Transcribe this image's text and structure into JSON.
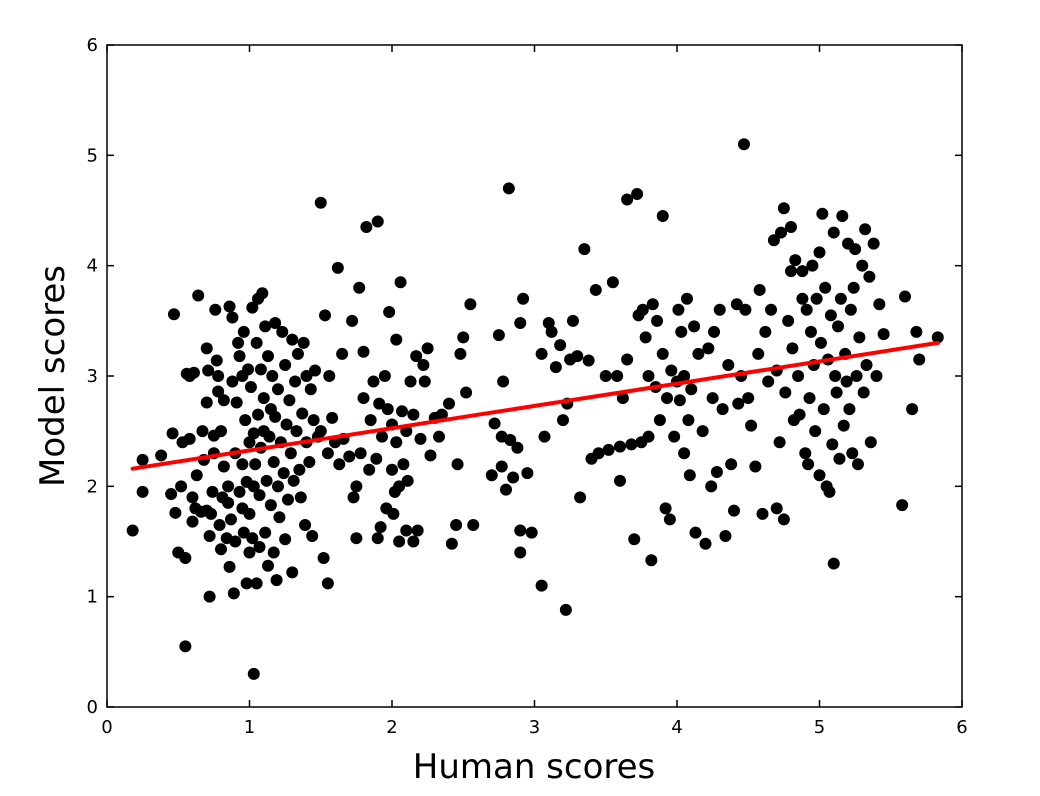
{
  "chart_data": {
    "type": "scatter",
    "title": "",
    "xlabel": "Human scores",
    "ylabel": "Model scores",
    "xlim": [
      0,
      6
    ],
    "ylim": [
      0,
      6
    ],
    "xticks": [
      "0",
      "1",
      "2",
      "3",
      "4",
      "5",
      "6"
    ],
    "yticks": [
      "0",
      "1",
      "2",
      "3",
      "4",
      "5",
      "6"
    ],
    "grid": false,
    "legend": "none",
    "marker_color": "#000000",
    "fit_line_color": "#ff0000",
    "fit_line": {
      "x": [
        0.18,
        5.83
      ],
      "y": [
        2.16,
        3.3
      ]
    },
    "points": [
      [
        0.18,
        1.6
      ],
      [
        0.25,
        1.95
      ],
      [
        0.25,
        2.24
      ],
      [
        0.38,
        2.28
      ],
      [
        0.45,
        1.93
      ],
      [
        0.46,
        2.48
      ],
      [
        0.47,
        3.56
      ],
      [
        0.48,
        1.76
      ],
      [
        0.5,
        1.4
      ],
      [
        0.52,
        2.0
      ],
      [
        0.53,
        2.4
      ],
      [
        0.55,
        1.35
      ],
      [
        0.55,
        0.55
      ],
      [
        0.56,
        3.02
      ],
      [
        0.58,
        2.43
      ],
      [
        0.58,
        3.0
      ],
      [
        0.6,
        1.68
      ],
      [
        0.6,
        1.9
      ],
      [
        0.61,
        3.03
      ],
      [
        0.62,
        1.8
      ],
      [
        0.63,
        2.1
      ],
      [
        0.64,
        3.73
      ],
      [
        0.66,
        1.77
      ],
      [
        0.67,
        2.5
      ],
      [
        0.68,
        2.24
      ],
      [
        0.7,
        1.78
      ],
      [
        0.7,
        2.76
      ],
      [
        0.7,
        3.25
      ],
      [
        0.71,
        3.05
      ],
      [
        0.72,
        1.0
      ],
      [
        0.72,
        1.55
      ],
      [
        0.73,
        1.75
      ],
      [
        0.74,
        1.95
      ],
      [
        0.75,
        2.3
      ],
      [
        0.75,
        2.46
      ],
      [
        0.76,
        3.6
      ],
      [
        0.77,
        3.14
      ],
      [
        0.78,
        2.86
      ],
      [
        0.78,
        3.0
      ],
      [
        0.79,
        1.65
      ],
      [
        0.8,
        1.43
      ],
      [
        0.8,
        2.5
      ],
      [
        0.81,
        1.9
      ],
      [
        0.82,
        2.18
      ],
      [
        0.82,
        2.78
      ],
      [
        0.84,
        1.53
      ],
      [
        0.85,
        1.85
      ],
      [
        0.85,
        2.0
      ],
      [
        0.86,
        3.63
      ],
      [
        0.86,
        1.27
      ],
      [
        0.87,
        1.7
      ],
      [
        0.88,
        2.95
      ],
      [
        0.88,
        3.53
      ],
      [
        0.89,
        1.03
      ],
      [
        0.9,
        1.5
      ],
      [
        0.9,
        2.3
      ],
      [
        0.91,
        2.76
      ],
      [
        0.92,
        3.3
      ],
      [
        0.93,
        1.95
      ],
      [
        0.93,
        3.18
      ],
      [
        0.95,
        1.8
      ],
      [
        0.95,
        2.2
      ],
      [
        0.95,
        3.0
      ],
      [
        0.96,
        1.58
      ],
      [
        0.96,
        3.4
      ],
      [
        0.97,
        2.6
      ],
      [
        0.98,
        1.12
      ],
      [
        0.98,
        2.04
      ],
      [
        0.99,
        3.06
      ],
      [
        1.0,
        1.4
      ],
      [
        1.0,
        1.75
      ],
      [
        1.0,
        2.4
      ],
      [
        1.01,
        2.9
      ],
      [
        1.02,
        1.53
      ],
      [
        1.02,
        3.62
      ],
      [
        1.03,
        2.0
      ],
      [
        1.03,
        2.48
      ],
      [
        1.03,
        0.3
      ],
      [
        1.04,
        2.2
      ],
      [
        1.05,
        3.3
      ],
      [
        1.05,
        1.12
      ],
      [
        1.06,
        3.7
      ],
      [
        1.06,
        2.65
      ],
      [
        1.07,
        1.45
      ],
      [
        1.07,
        1.92
      ],
      [
        1.08,
        2.35
      ],
      [
        1.08,
        3.06
      ],
      [
        1.09,
        3.75
      ],
      [
        1.1,
        2.5
      ],
      [
        1.1,
        2.8
      ],
      [
        1.11,
        1.58
      ],
      [
        1.11,
        3.45
      ],
      [
        1.12,
        2.05
      ],
      [
        1.13,
        1.28
      ],
      [
        1.13,
        3.18
      ],
      [
        1.14,
        2.45
      ],
      [
        1.15,
        2.7
      ],
      [
        1.15,
        1.83
      ],
      [
        1.16,
        3.0
      ],
      [
        1.17,
        1.4
      ],
      [
        1.17,
        2.22
      ],
      [
        1.18,
        2.63
      ],
      [
        1.18,
        3.48
      ],
      [
        1.19,
        1.15
      ],
      [
        1.2,
        2.0
      ],
      [
        1.2,
        2.88
      ],
      [
        1.21,
        1.72
      ],
      [
        1.22,
        2.4
      ],
      [
        1.23,
        3.4
      ],
      [
        1.24,
        2.12
      ],
      [
        1.25,
        1.52
      ],
      [
        1.25,
        3.1
      ],
      [
        1.26,
        2.56
      ],
      [
        1.27,
        1.88
      ],
      [
        1.28,
        2.78
      ],
      [
        1.29,
        2.3
      ],
      [
        1.3,
        1.22
      ],
      [
        1.3,
        3.33
      ],
      [
        1.31,
        2.05
      ],
      [
        1.32,
        2.95
      ],
      [
        1.33,
        2.5
      ],
      [
        1.34,
        3.2
      ],
      [
        1.35,
        2.15
      ],
      [
        1.36,
        1.9
      ],
      [
        1.37,
        2.66
      ],
      [
        1.38,
        3.3
      ],
      [
        1.39,
        1.65
      ],
      [
        1.4,
        2.4
      ],
      [
        1.4,
        3.0
      ],
      [
        1.42,
        2.22
      ],
      [
        1.43,
        2.88
      ],
      [
        1.44,
        1.55
      ],
      [
        1.45,
        2.6
      ],
      [
        1.46,
        3.05
      ],
      [
        1.48,
        2.45
      ],
      [
        1.5,
        4.57
      ],
      [
        1.5,
        2.5
      ],
      [
        1.52,
        1.35
      ],
      [
        1.53,
        3.55
      ],
      [
        1.55,
        1.12
      ],
      [
        1.55,
        2.3
      ],
      [
        1.56,
        3.0
      ],
      [
        1.58,
        2.62
      ],
      [
        1.6,
        2.4
      ],
      [
        1.62,
        3.98
      ],
      [
        1.63,
        2.2
      ],
      [
        1.65,
        3.2
      ],
      [
        1.66,
        2.43
      ],
      [
        1.7,
        2.27
      ],
      [
        1.72,
        3.5
      ],
      [
        1.73,
        1.9
      ],
      [
        1.75,
        2.0
      ],
      [
        1.75,
        1.53
      ],
      [
        1.77,
        3.8
      ],
      [
        1.78,
        2.3
      ],
      [
        1.8,
        3.22
      ],
      [
        1.8,
        2.8
      ],
      [
        1.82,
        4.35
      ],
      [
        1.84,
        2.15
      ],
      [
        1.85,
        2.6
      ],
      [
        1.87,
        2.95
      ],
      [
        1.89,
        2.25
      ],
      [
        1.9,
        1.53
      ],
      [
        1.9,
        4.4
      ],
      [
        1.91,
        2.75
      ],
      [
        1.92,
        1.63
      ],
      [
        1.93,
        2.45
      ],
      [
        1.95,
        3.0
      ],
      [
        1.96,
        1.8
      ],
      [
        1.97,
        2.7
      ],
      [
        1.98,
        3.58
      ],
      [
        2.0,
        2.15
      ],
      [
        2.0,
        2.56
      ],
      [
        2.01,
        1.75
      ],
      [
        2.02,
        1.95
      ],
      [
        2.03,
        2.4
      ],
      [
        2.03,
        3.33
      ],
      [
        2.05,
        1.5
      ],
      [
        2.05,
        2.0
      ],
      [
        2.06,
        3.85
      ],
      [
        2.07,
        2.68
      ],
      [
        2.08,
        2.2
      ],
      [
        2.1,
        1.6
      ],
      [
        2.1,
        2.5
      ],
      [
        2.11,
        2.05
      ],
      [
        2.13,
        2.95
      ],
      [
        2.15,
        2.65
      ],
      [
        2.15,
        1.5
      ],
      [
        2.17,
        3.18
      ],
      [
        2.18,
        1.6
      ],
      [
        2.2,
        2.43
      ],
      [
        2.22,
        3.1
      ],
      [
        2.23,
        2.95
      ],
      [
        2.25,
        3.25
      ],
      [
        2.27,
        2.28
      ],
      [
        2.3,
        2.62
      ],
      [
        2.33,
        2.45
      ],
      [
        2.35,
        2.65
      ],
      [
        2.4,
        2.75
      ],
      [
        2.42,
        1.48
      ],
      [
        2.45,
        1.65
      ],
      [
        2.46,
        2.2
      ],
      [
        2.48,
        3.2
      ],
      [
        2.5,
        3.35
      ],
      [
        2.52,
        2.85
      ],
      [
        2.55,
        3.65
      ],
      [
        2.57,
        1.65
      ],
      [
        2.7,
        2.1
      ],
      [
        2.72,
        2.57
      ],
      [
        2.75,
        3.37
      ],
      [
        2.77,
        2.45
      ],
      [
        2.77,
        2.18
      ],
      [
        2.78,
        2.95
      ],
      [
        2.8,
        1.97
      ],
      [
        2.82,
        4.7
      ],
      [
        2.83,
        2.42
      ],
      [
        2.85,
        2.08
      ],
      [
        2.88,
        2.35
      ],
      [
        2.9,
        1.4
      ],
      [
        2.9,
        1.6
      ],
      [
        2.9,
        3.48
      ],
      [
        2.92,
        3.7
      ],
      [
        2.95,
        2.12
      ],
      [
        2.98,
        1.58
      ],
      [
        3.05,
        3.2
      ],
      [
        3.05,
        1.1
      ],
      [
        3.07,
        2.45
      ],
      [
        3.1,
        3.48
      ],
      [
        3.12,
        3.4
      ],
      [
        3.15,
        3.08
      ],
      [
        3.18,
        3.28
      ],
      [
        3.2,
        2.6
      ],
      [
        3.22,
        0.88
      ],
      [
        3.23,
        2.75
      ],
      [
        3.25,
        3.15
      ],
      [
        3.27,
        3.5
      ],
      [
        3.3,
        3.18
      ],
      [
        3.32,
        1.9
      ],
      [
        3.35,
        4.15
      ],
      [
        3.38,
        3.14
      ],
      [
        3.4,
        2.25
      ],
      [
        3.43,
        3.78
      ],
      [
        3.45,
        2.3
      ],
      [
        3.5,
        3.0
      ],
      [
        3.52,
        2.33
      ],
      [
        3.55,
        3.85
      ],
      [
        3.58,
        3.0
      ],
      [
        3.6,
        2.05
      ],
      [
        3.6,
        2.36
      ],
      [
        3.62,
        2.8
      ],
      [
        3.65,
        3.15
      ],
      [
        3.65,
        4.6
      ],
      [
        3.68,
        2.38
      ],
      [
        3.7,
        1.52
      ],
      [
        3.72,
        4.65
      ],
      [
        3.73,
        3.55
      ],
      [
        3.75,
        2.4
      ],
      [
        3.76,
        3.6
      ],
      [
        3.78,
        3.35
      ],
      [
        3.8,
        2.45
      ],
      [
        3.8,
        3.0
      ],
      [
        3.82,
        1.33
      ],
      [
        3.83,
        3.65
      ],
      [
        3.85,
        2.9
      ],
      [
        3.86,
        3.5
      ],
      [
        3.88,
        2.6
      ],
      [
        3.9,
        4.45
      ],
      [
        3.9,
        3.2
      ],
      [
        3.92,
        1.8
      ],
      [
        3.93,
        2.8
      ],
      [
        3.95,
        1.7
      ],
      [
        3.96,
        3.05
      ],
      [
        3.98,
        2.45
      ],
      [
        4.0,
        2.95
      ],
      [
        4.01,
        3.6
      ],
      [
        4.02,
        2.78
      ],
      [
        4.03,
        3.4
      ],
      [
        4.05,
        2.3
      ],
      [
        4.05,
        3.0
      ],
      [
        4.07,
        3.7
      ],
      [
        4.08,
        2.6
      ],
      [
        4.09,
        2.1
      ],
      [
        4.1,
        2.88
      ],
      [
        4.12,
        3.45
      ],
      [
        4.13,
        1.58
      ],
      [
        4.15,
        3.2
      ],
      [
        4.18,
        2.5
      ],
      [
        4.2,
        1.48
      ],
      [
        4.22,
        3.25
      ],
      [
        4.24,
        2.0
      ],
      [
        4.25,
        2.8
      ],
      [
        4.26,
        3.4
      ],
      [
        4.28,
        2.13
      ],
      [
        4.3,
        3.6
      ],
      [
        4.32,
        2.7
      ],
      [
        4.34,
        1.55
      ],
      [
        4.36,
        3.1
      ],
      [
        4.38,
        2.2
      ],
      [
        4.4,
        1.78
      ],
      [
        4.42,
        3.65
      ],
      [
        4.43,
        2.75
      ],
      [
        4.45,
        3.0
      ],
      [
        4.47,
        5.1
      ],
      [
        4.48,
        3.6
      ],
      [
        4.5,
        2.8
      ],
      [
        4.52,
        2.55
      ],
      [
        4.55,
        2.18
      ],
      [
        4.57,
        3.2
      ],
      [
        4.58,
        3.78
      ],
      [
        4.6,
        1.75
      ],
      [
        4.62,
        3.4
      ],
      [
        4.64,
        2.95
      ],
      [
        4.66,
        3.6
      ],
      [
        4.68,
        4.23
      ],
      [
        4.7,
        3.05
      ],
      [
        4.7,
        1.8
      ],
      [
        4.72,
        2.4
      ],
      [
        4.73,
        4.3
      ],
      [
        4.75,
        4.52
      ],
      [
        4.75,
        1.7
      ],
      [
        4.76,
        2.85
      ],
      [
        4.78,
        3.5
      ],
      [
        4.8,
        3.95
      ],
      [
        4.8,
        4.35
      ],
      [
        4.81,
        3.25
      ],
      [
        4.82,
        2.6
      ],
      [
        4.83,
        4.05
      ],
      [
        4.85,
        3.0
      ],
      [
        4.86,
        2.65
      ],
      [
        4.88,
        3.7
      ],
      [
        4.88,
        3.95
      ],
      [
        4.9,
        2.3
      ],
      [
        4.91,
        3.6
      ],
      [
        4.92,
        2.2
      ],
      [
        4.93,
        2.8
      ],
      [
        4.94,
        3.4
      ],
      [
        4.95,
        4.0
      ],
      [
        4.96,
        3.1
      ],
      [
        4.97,
        2.5
      ],
      [
        4.98,
        3.7
      ],
      [
        5.0,
        2.1
      ],
      [
        5.0,
        4.12
      ],
      [
        5.01,
        3.3
      ],
      [
        5.02,
        4.47
      ],
      [
        5.03,
        2.7
      ],
      [
        5.04,
        3.8
      ],
      [
        5.05,
        2.0
      ],
      [
        5.06,
        3.15
      ],
      [
        5.07,
        1.95
      ],
      [
        5.08,
        3.55
      ],
      [
        5.09,
        2.38
      ],
      [
        5.1,
        1.3
      ],
      [
        5.1,
        4.3
      ],
      [
        5.11,
        3.0
      ],
      [
        5.12,
        2.85
      ],
      [
        5.13,
        3.45
      ],
      [
        5.14,
        2.25
      ],
      [
        5.15,
        3.7
      ],
      [
        5.16,
        4.45
      ],
      [
        5.17,
        2.55
      ],
      [
        5.18,
        3.2
      ],
      [
        5.19,
        2.95
      ],
      [
        5.2,
        4.2
      ],
      [
        5.21,
        2.7
      ],
      [
        5.22,
        3.6
      ],
      [
        5.23,
        2.3
      ],
      [
        5.24,
        3.8
      ],
      [
        5.25,
        4.15
      ],
      [
        5.26,
        3.0
      ],
      [
        5.27,
        2.2
      ],
      [
        5.28,
        3.35
      ],
      [
        5.3,
        4.0
      ],
      [
        5.31,
        2.85
      ],
      [
        5.32,
        4.33
      ],
      [
        5.33,
        3.1
      ],
      [
        5.35,
        3.9
      ],
      [
        5.36,
        2.4
      ],
      [
        5.38,
        4.2
      ],
      [
        5.4,
        3.0
      ],
      [
        5.42,
        3.65
      ],
      [
        5.45,
        3.38
      ],
      [
        5.58,
        1.83
      ],
      [
        5.6,
        3.72
      ],
      [
        5.65,
        2.7
      ],
      [
        5.68,
        3.4
      ],
      [
        5.7,
        3.15
      ],
      [
        5.83,
        3.35
      ]
    ]
  }
}
